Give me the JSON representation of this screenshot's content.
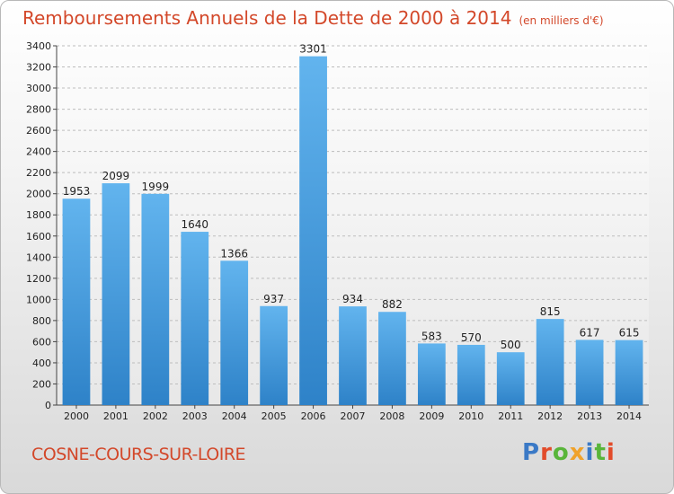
{
  "title": "Remboursements Annuels de la Dette de 2000 à 2014",
  "unit": "(en milliers d'€)",
  "city": "COSNE-COURS-SUR-LOIRE",
  "logo": {
    "text": "Proxiti",
    "colors": [
      "#3a79c6",
      "#e24b2a",
      "#59b53a",
      "#f0a22a",
      "#3a79c6",
      "#59b53a",
      "#e24b2a"
    ]
  },
  "colors": {
    "title": "#d3482a",
    "bar_light": "#62b4ee",
    "bar_dark": "#2e82c8"
  },
  "chart_data": {
    "type": "bar",
    "categories": [
      "2000",
      "2001",
      "2002",
      "2003",
      "2004",
      "2005",
      "2006",
      "2007",
      "2008",
      "2009",
      "2010",
      "2011",
      "2012",
      "2013",
      "2014"
    ],
    "values": [
      1953,
      2099,
      1999,
      1640,
      1366,
      937,
      3301,
      934,
      882,
      583,
      570,
      500,
      815,
      617,
      615
    ],
    "ylim": [
      0,
      3400
    ],
    "yticks": [
      0,
      200,
      400,
      600,
      800,
      1000,
      1200,
      1400,
      1600,
      1800,
      2000,
      2200,
      2400,
      2600,
      2800,
      3000,
      3200,
      3400
    ],
    "grid": true
  }
}
